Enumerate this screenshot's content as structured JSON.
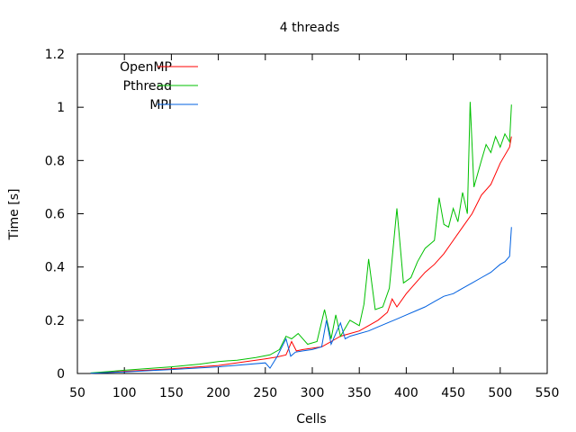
{
  "chart_data": {
    "type": "line",
    "title": "4 threads",
    "xlabel": "Cells",
    "ylabel": "Time [s]",
    "xlim": [
      50,
      550
    ],
    "ylim": [
      0,
      1.2
    ],
    "xticks": [
      50,
      100,
      150,
      200,
      250,
      300,
      350,
      400,
      450,
      500,
      550
    ],
    "xtick_labels": [
      "50",
      "100",
      "150",
      "200",
      "250",
      "300",
      "350",
      "400",
      "450",
      "500",
      "550"
    ],
    "yticks": [
      0,
      0.2,
      0.4,
      0.6,
      0.8,
      1.0,
      1.2
    ],
    "ytick_labels": [
      "0",
      "0.2",
      "0.4",
      "0.6",
      "0.8",
      "1",
      "1.2"
    ],
    "grid": false,
    "legend_position": "top-left",
    "series": [
      {
        "name": "OpenMP",
        "color": "#ff0000",
        "x": [
          64,
          100,
          150,
          200,
          250,
          262,
          272,
          278,
          283,
          290,
          300,
          310,
          320,
          325,
          330,
          340,
          350,
          360,
          370,
          380,
          385,
          390,
          400,
          410,
          420,
          430,
          440,
          450,
          460,
          470,
          480,
          490,
          500,
          510,
          512
        ],
        "y": [
          0.001,
          0.008,
          0.018,
          0.03,
          0.055,
          0.062,
          0.07,
          0.12,
          0.085,
          0.09,
          0.095,
          0.1,
          0.12,
          0.13,
          0.14,
          0.15,
          0.16,
          0.18,
          0.2,
          0.23,
          0.28,
          0.25,
          0.3,
          0.34,
          0.38,
          0.41,
          0.45,
          0.5,
          0.55,
          0.6,
          0.67,
          0.71,
          0.79,
          0.85,
          0.89
        ]
      },
      {
        "name": "Pthread",
        "color": "#00c000",
        "x": [
          64,
          100,
          130,
          150,
          180,
          200,
          220,
          240,
          255,
          265,
          272,
          278,
          285,
          295,
          305,
          313,
          320,
          325,
          330,
          340,
          350,
          355,
          360,
          367,
          375,
          382,
          390,
          397,
          405,
          412,
          420,
          430,
          435,
          440,
          445,
          450,
          455,
          460,
          465,
          468,
          472,
          480,
          485,
          490,
          495,
          500,
          505,
          510,
          512
        ],
        "y": [
          0.002,
          0.012,
          0.02,
          0.025,
          0.035,
          0.045,
          0.05,
          0.06,
          0.07,
          0.09,
          0.14,
          0.13,
          0.15,
          0.11,
          0.12,
          0.24,
          0.13,
          0.22,
          0.14,
          0.2,
          0.18,
          0.26,
          0.43,
          0.24,
          0.25,
          0.32,
          0.62,
          0.34,
          0.36,
          0.42,
          0.47,
          0.5,
          0.66,
          0.56,
          0.55,
          0.62,
          0.57,
          0.68,
          0.6,
          1.02,
          0.7,
          0.8,
          0.86,
          0.83,
          0.89,
          0.85,
          0.9,
          0.87,
          1.01
        ]
      },
      {
        "name": "MPI",
        "color": "#0060e0",
        "x": [
          64,
          100,
          150,
          200,
          250,
          255,
          262,
          272,
          277,
          282,
          290,
          300,
          310,
          315,
          320,
          330,
          335,
          340,
          350,
          360,
          370,
          380,
          390,
          400,
          410,
          420,
          430,
          440,
          450,
          460,
          470,
          480,
          490,
          500,
          505,
          510,
          512
        ],
        "y": [
          0.001,
          0.006,
          0.015,
          0.025,
          0.04,
          0.02,
          0.06,
          0.13,
          0.065,
          0.08,
          0.085,
          0.09,
          0.1,
          0.2,
          0.11,
          0.19,
          0.13,
          0.14,
          0.15,
          0.16,
          0.175,
          0.19,
          0.205,
          0.22,
          0.235,
          0.25,
          0.27,
          0.29,
          0.3,
          0.32,
          0.34,
          0.36,
          0.38,
          0.41,
          0.42,
          0.44,
          0.55
        ]
      }
    ]
  }
}
